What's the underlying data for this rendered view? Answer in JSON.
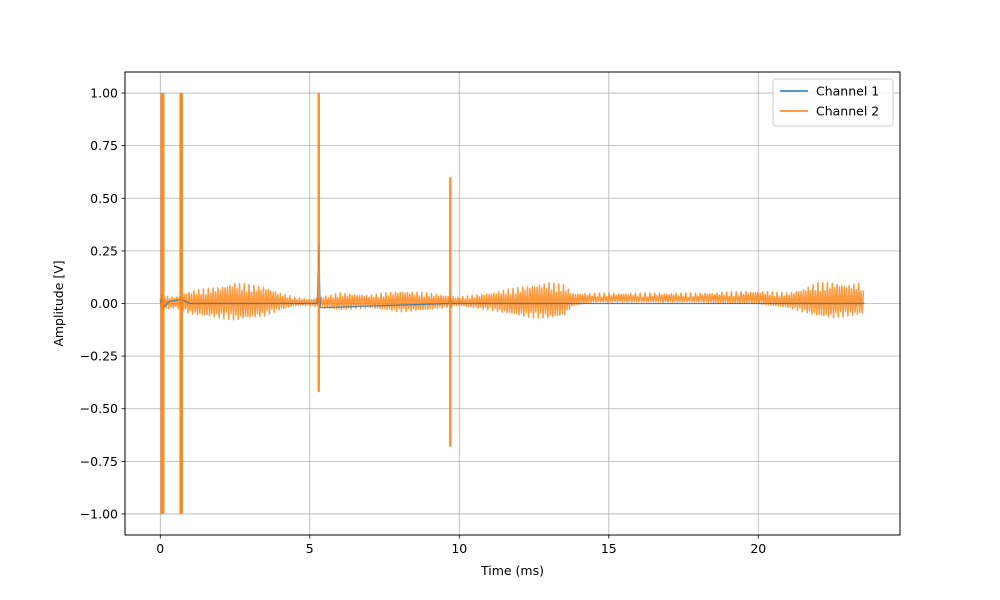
{
  "chart_data": {
    "type": "line",
    "title": "",
    "xlabel": "Time (ms)",
    "ylabel": "Amplitude [V]",
    "xlim": [
      -1.18,
      24.74
    ],
    "ylim": [
      -1.1,
      1.1
    ],
    "x_ticks": [
      0,
      5,
      10,
      15,
      20
    ],
    "x_tick_labels": [
      "0",
      "5",
      "10",
      "15",
      "20"
    ],
    "y_ticks": [
      1.0,
      0.75,
      0.5,
      0.25,
      0.0,
      -0.25,
      -0.5,
      -0.75,
      -1.0
    ],
    "y_tick_labels": [
      "1.00",
      "0.75",
      "0.50",
      "0.25",
      "0.00",
      "−0.25",
      "−0.50",
      "−0.75",
      "−1.00"
    ],
    "grid": true,
    "legend_position": "top-right",
    "series": [
      {
        "name": "Channel 1",
        "color": "#1f77b4",
        "x": [
          0,
          0.05,
          0.1,
          0.3,
          0.7,
          1.0,
          5.25,
          5.3,
          5.35,
          9.65,
          9.7,
          9.75,
          12.0,
          20.0,
          23.55
        ],
        "y": [
          0,
          0.04,
          -0.02,
          0.01,
          0.02,
          0.0,
          0.0,
          0.28,
          -0.02,
          0.0,
          0.02,
          0.0,
          0.0,
          0.0,
          0.0
        ]
      },
      {
        "name": "Channel 2",
        "color": "#ff7f0e",
        "envelope": {
          "x": [
            0.0,
            0.5,
            1.0,
            2.0,
            2.5,
            3.0,
            3.5,
            4.0,
            4.5,
            5.0,
            6.0,
            7.0,
            8.0,
            9.0,
            10.0,
            11.0,
            11.7,
            12.5,
            13.0,
            13.5,
            13.8,
            14.5,
            16.0,
            18.0,
            20.0,
            21.0,
            21.5,
            22.0,
            22.5,
            23.0,
            23.5,
            23.55
          ],
          "upper": [
            0.04,
            0.03,
            0.06,
            0.08,
            0.1,
            0.09,
            0.08,
            0.05,
            0.03,
            0.02,
            0.05,
            0.04,
            0.06,
            0.05,
            0.03,
            0.05,
            0.07,
            0.09,
            0.1,
            0.09,
            0.05,
            0.05,
            0.05,
            0.05,
            0.06,
            0.05,
            0.07,
            0.1,
            0.1,
            0.09,
            0.1,
            0.0
          ],
          "lower": [
            -0.03,
            -0.02,
            -0.05,
            -0.07,
            -0.08,
            -0.07,
            -0.06,
            -0.03,
            -0.01,
            -0.01,
            -0.03,
            -0.02,
            -0.04,
            -0.03,
            -0.01,
            -0.03,
            -0.05,
            -0.07,
            -0.07,
            -0.06,
            -0.01,
            0.01,
            0.01,
            0.01,
            0.0,
            -0.02,
            -0.04,
            -0.06,
            -0.07,
            -0.06,
            -0.05,
            0.0
          ]
        },
        "spikes": [
          {
            "x": 0.05,
            "max": 1.0,
            "min": -1.0
          },
          {
            "x": 0.1,
            "max": 1.0,
            "min": -1.0
          },
          {
            "x": 0.68,
            "max": 1.0,
            "min": -1.0
          },
          {
            "x": 0.72,
            "max": 1.0,
            "min": -1.0
          },
          {
            "x": 5.3,
            "max": 1.0,
            "min": -0.42
          },
          {
            "x": 9.7,
            "max": 0.6,
            "min": -0.68
          }
        ]
      }
    ]
  }
}
